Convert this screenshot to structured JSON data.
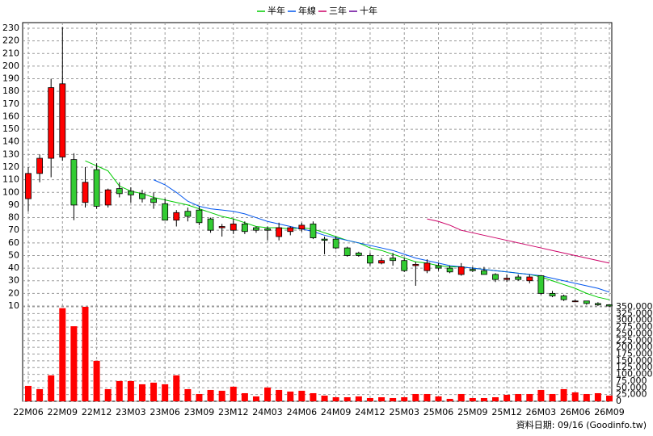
{
  "chart_data": {
    "type": "candlestick",
    "categories": [
      "22M06",
      null,
      null,
      "22M09",
      null,
      null,
      "22M12",
      null,
      null,
      "23M03",
      null,
      null,
      "23M06",
      null,
      null,
      "23M09",
      null,
      null,
      "23M12",
      null,
      null,
      "24M03",
      null,
      null,
      "24M06",
      null,
      null,
      "24M09",
      null,
      null,
      "24M12",
      null,
      null,
      "25M03",
      null,
      null,
      "25M06",
      null,
      null,
      "25M09",
      null,
      null,
      "25M12",
      null,
      null,
      "26M03",
      null,
      null,
      "26M06",
      null,
      null,
      "26M09"
    ],
    "open": [
      95,
      115,
      127,
      128,
      126,
      92,
      118,
      90,
      103,
      101,
      99,
      95,
      91,
      78,
      85,
      86,
      79,
      72,
      70,
      75,
      72,
      71,
      65,
      69,
      71,
      75,
      63,
      63,
      56,
      52,
      50,
      44,
      48,
      46,
      42,
      38,
      42,
      40,
      35,
      39,
      38,
      35,
      31,
      33,
      30,
      34,
      20,
      18,
      14,
      14,
      12,
      11
    ],
    "high": [
      120,
      130,
      190,
      231,
      131,
      120,
      123,
      103,
      108,
      104,
      102,
      100,
      95,
      86,
      88,
      89,
      80,
      75,
      79,
      77,
      73,
      73,
      76,
      73,
      76,
      77,
      65,
      65,
      57,
      53,
      52,
      48,
      52,
      48,
      45,
      47,
      44,
      42,
      44,
      41,
      41,
      36,
      35,
      35,
      35,
      34,
      22,
      19,
      15,
      14,
      13,
      11
    ],
    "low": [
      85,
      108,
      112,
      125,
      78,
      88,
      87,
      88,
      96,
      92,
      92,
      87,
      78,
      73,
      77,
      74,
      68,
      65,
      67,
      67,
      68,
      62,
      62,
      66,
      69,
      63,
      51,
      55,
      49,
      49,
      42,
      43,
      42,
      37,
      26,
      36,
      38,
      36,
      34,
      37,
      35,
      29,
      29,
      30,
      28,
      19,
      17,
      14,
      13,
      11,
      10,
      9
    ],
    "close": [
      115,
      127,
      183,
      186,
      90,
      108,
      89,
      102,
      99,
      98,
      95,
      92,
      78,
      84,
      81,
      76,
      70,
      73,
      75,
      69,
      70,
      70,
      72,
      72,
      74,
      64,
      62,
      56,
      50,
      50,
      44,
      46,
      46,
      38,
      43,
      44,
      40,
      37,
      41,
      38,
      35,
      31,
      32,
      31,
      33,
      20,
      18,
      15,
      14,
      12,
      11,
      10
    ],
    "up_color": "#ff0000",
    "down_color": "#33cc33",
    "series": [
      {
        "name": "半年",
        "color": "#00cc00",
        "values": [
          null,
          null,
          null,
          null,
          null,
          125,
          121,
          117,
          105,
          101,
          99,
          96,
          94,
          92,
          90,
          87,
          84,
          81,
          79,
          76,
          73,
          72,
          72,
          71,
          72,
          71,
          68,
          65,
          62,
          60,
          56,
          54,
          51,
          48,
          45,
          44,
          42,
          41,
          41,
          40,
          39,
          38,
          37,
          36,
          35,
          33,
          30,
          27,
          24,
          20,
          17,
          15
        ]
      },
      {
        "name": "年線",
        "color": "#0055ee",
        "values": [
          null,
          null,
          null,
          null,
          null,
          null,
          null,
          null,
          null,
          null,
          null,
          110,
          106,
          100,
          93,
          89,
          87,
          86,
          85,
          83,
          80,
          77,
          75,
          73,
          71,
          69,
          66,
          64,
          62,
          60,
          58,
          56,
          54,
          51,
          48,
          46,
          44,
          42,
          41,
          40,
          39,
          38,
          37,
          36,
          35,
          34,
          32,
          30,
          28,
          26,
          24,
          21
        ]
      },
      {
        "name": "三年",
        "color": "#cc0066",
        "values": [
          null,
          null,
          null,
          null,
          null,
          null,
          null,
          null,
          null,
          null,
          null,
          null,
          null,
          null,
          null,
          null,
          null,
          null,
          null,
          null,
          null,
          null,
          null,
          null,
          null,
          null,
          null,
          null,
          null,
          null,
          null,
          null,
          null,
          null,
          null,
          79,
          77,
          74,
          70,
          68,
          66,
          64,
          62,
          60,
          58,
          56,
          54,
          52,
          50,
          48,
          46,
          44
        ]
      },
      {
        "name": "十年",
        "color": "#660099",
        "values": [
          null,
          null,
          null,
          null,
          null,
          null,
          null,
          null,
          null,
          null,
          null,
          null,
          null,
          null,
          null,
          null,
          null,
          null,
          null,
          null,
          null,
          null,
          null,
          null,
          null,
          null,
          null,
          null,
          null,
          null,
          null,
          null,
          null,
          null,
          null,
          null,
          null,
          null,
          null,
          null,
          null,
          null,
          null,
          null,
          null,
          null,
          null,
          null,
          null,
          null,
          null,
          null
        ]
      }
    ],
    "volume": {
      "color": "#ff0000",
      "axis": "y2",
      "values": [
        57000,
        45000,
        96000,
        345000,
        278000,
        350000,
        150000,
        45000,
        75000,
        75000,
        63000,
        69000,
        63000,
        96000,
        45000,
        27000,
        42000,
        39000,
        54000,
        30000,
        18000,
        51000,
        42000,
        36000,
        39000,
        30000,
        21000,
        15000,
        15000,
        18000,
        12000,
        15000,
        12000,
        15000,
        27000,
        27000,
        18000,
        9000,
        27000,
        12000,
        12000,
        15000,
        24000,
        27000,
        27000,
        42000,
        27000,
        45000,
        33000,
        27000,
        30000,
        21000
      ]
    },
    "ylim": [
      10,
      230
    ],
    "yticks": [
      10,
      20,
      30,
      40,
      50,
      60,
      70,
      80,
      90,
      100,
      110,
      120,
      130,
      140,
      150,
      160,
      170,
      180,
      190,
      200,
      210,
      220,
      230
    ],
    "y2lim": [
      0,
      350000
    ],
    "y2ticks": [
      0,
      {
        "value": 25000,
        "label": "25,000"
      },
      {
        "value": 50000,
        "label": "50,000"
      },
      {
        "value": 75000,
        "label": "75,000"
      },
      {
        "value": 100000,
        "label": "100,000"
      },
      {
        "value": 125000,
        "label": "125,000"
      },
      {
        "value": 150000,
        "label": "150,000"
      },
      {
        "value": 175000,
        "label": "175,000"
      },
      {
        "value": 200000,
        "label": "200,000"
      },
      {
        "value": 225000,
        "label": "225,000"
      },
      {
        "value": 250000,
        "label": "250,000"
      },
      {
        "value": 275000,
        "label": "275,000"
      },
      {
        "value": 300000,
        "label": "300,000"
      },
      {
        "value": 325000,
        "label": "325,000"
      },
      {
        "value": 350000,
        "label": "350,000"
      }
    ],
    "grid": true,
    "footnote": "資料日期: 09/16 (Goodinfo.tw)"
  }
}
